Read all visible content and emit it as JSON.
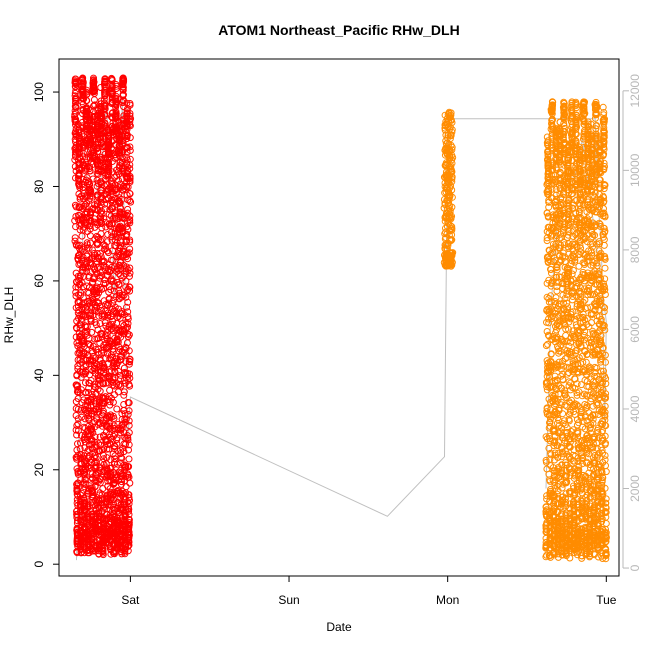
{
  "chart_data": {
    "type": "scatter",
    "title": "ATOM1 Northeast_Pacific RHw_DLH",
    "xlabel": "Date",
    "ylabel": "RHw_DLH",
    "x_ticks": [
      {
        "label": "Sat",
        "value": 1
      },
      {
        "label": "Sun",
        "value": 2
      },
      {
        "label": "Mon",
        "value": 3
      },
      {
        "label": "Tue",
        "value": 4
      }
    ],
    "xlim": [
      0.55,
      4.08
    ],
    "ylim": [
      -2.5,
      107
    ],
    "y_ticks": [
      0,
      20,
      40,
      60,
      80,
      100
    ],
    "y2_ticks": [
      0,
      2000,
      4000,
      6000,
      8000,
      10000,
      12000
    ],
    "y2lim": [
      -200,
      12800
    ],
    "colors": {
      "series1": "#ff0000",
      "series2": "#ff8c00",
      "altitude_line": "#c0c0c0"
    },
    "series": [
      {
        "color": "#ff0000",
        "x_range": [
          0.65,
          1.0
        ],
        "y_range": [
          2,
          103
        ]
      },
      {
        "color": "#ff8c00",
        "x_range": [
          2.98,
          3.03
        ],
        "y_range": [
          63,
          96
        ]
      },
      {
        "color": "#ff8c00",
        "x_range": [
          3.62,
          4.0
        ],
        "y_range": [
          1,
          98
        ]
      }
    ],
    "altitude_profile": [
      [
        0.66,
        200
      ],
      [
        0.7,
        8500
      ],
      [
        0.75,
        11300
      ],
      [
        0.8,
        9000
      ],
      [
        0.85,
        11700
      ],
      [
        0.9,
        6800
      ],
      [
        0.95,
        11800
      ],
      [
        0.98,
        3000
      ],
      [
        1.0,
        4300
      ],
      [
        2.62,
        1300
      ],
      [
        2.98,
        2800
      ],
      [
        2.99,
        7000
      ],
      [
        3.0,
        11300
      ],
      [
        3.03,
        11300
      ],
      [
        3.93,
        11300
      ],
      [
        3.94,
        9700
      ],
      [
        3.97,
        8000
      ],
      [
        3.99,
        3500
      ],
      [
        4.0,
        6200
      ],
      [
        3.85,
        10800
      ],
      [
        3.8,
        9800
      ],
      [
        3.75,
        10100
      ],
      [
        3.7,
        9200
      ],
      [
        3.65,
        6500
      ],
      [
        3.62,
        2000
      ]
    ]
  }
}
